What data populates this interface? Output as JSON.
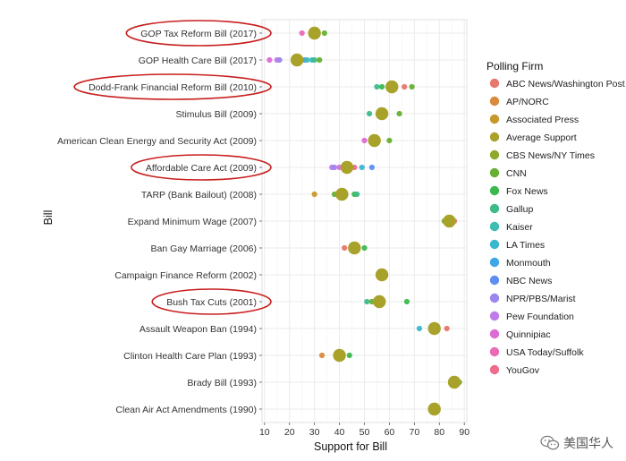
{
  "chart_data": {
    "type": "scatter",
    "xlabel": "Support for Bill",
    "ylabel": "Bill",
    "xlim": [
      9,
      91
    ],
    "xticks": [
      10,
      20,
      30,
      40,
      50,
      60,
      70,
      80,
      90
    ],
    "grid": true,
    "legend_title": "Polling Firm",
    "legend_position": "right",
    "firms": [
      {
        "name": "ABC News/Washington Post",
        "color": "#e8766d"
      },
      {
        "name": "AP/NORC",
        "color": "#d98a3d"
      },
      {
        "name": "Associated Press",
        "color": "#c8982a"
      },
      {
        "name": "Average Support",
        "color": "#a8a22a"
      },
      {
        "name": "CBS News/NY Times",
        "color": "#8eaa2c"
      },
      {
        "name": "CNN",
        "color": "#66b032"
      },
      {
        "name": "Fox News",
        "color": "#3db84e"
      },
      {
        "name": "Gallup",
        "color": "#3fbb8a"
      },
      {
        "name": "Kaiser",
        "color": "#3ebdb0"
      },
      {
        "name": "LA Times",
        "color": "#3bb6d0"
      },
      {
        "name": "Monmouth",
        "color": "#3fa7e6"
      },
      {
        "name": "NBC News",
        "color": "#5e8ff2"
      },
      {
        "name": "NPR/PBS/Marist",
        "color": "#9b86ee"
      },
      {
        "name": "Pew Foundation",
        "color": "#c07be8"
      },
      {
        "name": "Quinnipiac",
        "color": "#dd6bd6"
      },
      {
        "name": "USA Today/Suffolk",
        "color": "#e96bb3"
      },
      {
        "name": "YouGov",
        "color": "#ee6d8d"
      }
    ],
    "bills": [
      {
        "name": "GOP Tax Reform Bill (2017)",
        "highlighted": true,
        "average": 30,
        "polls": [
          {
            "firm": "USA Today/Suffolk",
            "value": 25
          },
          {
            "firm": "CNN",
            "value": 34
          }
        ]
      },
      {
        "name": "GOP Health Care Bill (2017)",
        "highlighted": false,
        "average": 23,
        "polls": [
          {
            "firm": "Quinnipiac",
            "value": 12
          },
          {
            "firm": "Pew Foundation",
            "value": 15
          },
          {
            "firm": "NPR/PBS/Marist",
            "value": 16
          },
          {
            "firm": "NBC News",
            "value": 26
          },
          {
            "firm": "Kaiser",
            "value": 27
          },
          {
            "firm": "LA Times",
            "value": 29
          },
          {
            "firm": "Gallup",
            "value": 30
          },
          {
            "firm": "CNN",
            "value": 32
          }
        ]
      },
      {
        "name": "Dodd-Frank Financial Reform Bill (2010)",
        "highlighted": true,
        "average": 61,
        "polls": [
          {
            "firm": "Gallup",
            "value": 55
          },
          {
            "firm": "Fox News",
            "value": 57
          },
          {
            "firm": "ABC News/Washington Post",
            "value": 66
          },
          {
            "firm": "CNN",
            "value": 69
          }
        ]
      },
      {
        "name": "Stimulus Bill (2009)",
        "highlighted": false,
        "average": 57,
        "polls": [
          {
            "firm": "Gallup",
            "value": 52
          },
          {
            "firm": "CNN",
            "value": 64
          }
        ]
      },
      {
        "name": "American Clean Energy and Security Act (2009)",
        "highlighted": false,
        "average": 54,
        "polls": [
          {
            "firm": "Quinnipiac",
            "value": 50
          },
          {
            "firm": "CNN",
            "value": 60
          }
        ]
      },
      {
        "name": "Affordable Care Act (2009)",
        "highlighted": true,
        "average": 43,
        "polls": [
          {
            "firm": "Pew Foundation",
            "value": 37
          },
          {
            "firm": "NPR/PBS/Marist",
            "value": 38
          },
          {
            "firm": "Quinnipiac",
            "value": 40
          },
          {
            "firm": "YouGov",
            "value": 46
          },
          {
            "firm": "LA Times",
            "value": 49
          },
          {
            "firm": "NBC News",
            "value": 53
          }
        ]
      },
      {
        "name": "TARP (Bank Bailout) (2008)",
        "highlighted": false,
        "average": 41,
        "polls": [
          {
            "firm": "Associated Press",
            "value": 30
          },
          {
            "firm": "CNN",
            "value": 38
          },
          {
            "firm": "Fox News",
            "value": 46
          },
          {
            "firm": "Gallup",
            "value": 47
          }
        ]
      },
      {
        "name": "Expand Minimum Wage (2007)",
        "highlighted": false,
        "average": 84,
        "polls": [
          {
            "firm": "CNN",
            "value": 82
          },
          {
            "firm": "ABC News/Washington Post",
            "value": 86
          }
        ]
      },
      {
        "name": "Ban Gay Marriage (2006)",
        "highlighted": false,
        "average": 46,
        "polls": [
          {
            "firm": "ABC News/Washington Post",
            "value": 42
          },
          {
            "firm": "Fox News",
            "value": 50
          }
        ]
      },
      {
        "name": "Campaign Finance Reform (2002)",
        "highlighted": false,
        "average": 57,
        "polls": []
      },
      {
        "name": "Bush Tax Cuts (2001)",
        "highlighted": true,
        "average": 56,
        "polls": [
          {
            "firm": "Gallup",
            "value": 51
          },
          {
            "firm": "CNN",
            "value": 53
          },
          {
            "firm": "Fox News",
            "value": 67
          }
        ]
      },
      {
        "name": "Assault Weapon Ban (1994)",
        "highlighted": false,
        "average": 78,
        "polls": [
          {
            "firm": "LA Times",
            "value": 72
          },
          {
            "firm": "ABC News/Washington Post",
            "value": 83
          }
        ]
      },
      {
        "name": "Clinton Health Care Plan (1993)",
        "highlighted": false,
        "average": 40,
        "polls": [
          {
            "firm": "AP/NORC",
            "value": 33
          },
          {
            "firm": "Fox News",
            "value": 44
          }
        ]
      },
      {
        "name": "Brady Bill (1993)",
        "highlighted": false,
        "average": 86,
        "polls": [
          {
            "firm": "CNN",
            "value": 88
          }
        ]
      },
      {
        "name": "Clean Air Act Amendments (1990)",
        "highlighted": false,
        "average": 78,
        "polls": []
      }
    ]
  },
  "watermark": {
    "text": "美国华人",
    "icon": "wechat-icon"
  }
}
